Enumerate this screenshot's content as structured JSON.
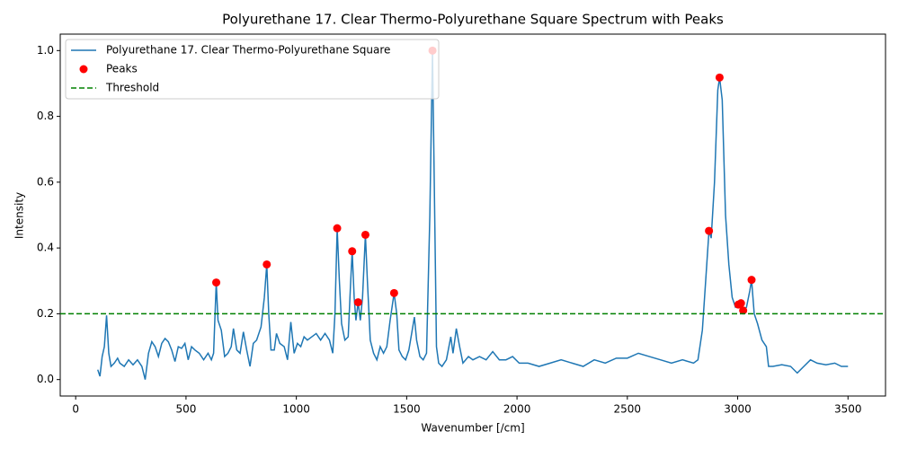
{
  "chart_data": {
    "type": "line",
    "title": "Polyurethane 17. Clear Thermo-Polyurethane Square Spectrum with Peaks",
    "x_label": "Wavenumber [/cm]",
    "y_label": "Intensity",
    "xlim": [
      -70,
      3670
    ],
    "ylim": [
      -0.05,
      1.05
    ],
    "xticks": [
      0,
      500,
      1000,
      1500,
      2000,
      2500,
      3000,
      3500
    ],
    "yticks": [
      {
        "value": 0,
        "label": "0.0"
      },
      0.2,
      0.4,
      0.6,
      0.8,
      {
        "value": 1,
        "label": "1.0"
      }
    ],
    "legend": "upper left",
    "series": [
      {
        "name": "Polyurethane 17. Clear Thermo-Polyurethane Square",
        "kind": "line",
        "color": "#1f77b4",
        "x": [
          100,
          110,
          120,
          130,
          140,
          150,
          160,
          175,
          190,
          200,
          220,
          240,
          260,
          280,
          300,
          315,
          330,
          345,
          360,
          375,
          390,
          405,
          420,
          435,
          450,
          465,
          480,
          495,
          510,
          525,
          540,
          560,
          580,
          600,
          615,
          625,
          637,
          645,
          660,
          675,
          690,
          705,
          715,
          730,
          745,
          760,
          775,
          790,
          805,
          820,
          840,
          855,
          866,
          875,
          885,
          900,
          910,
          925,
          945,
          960,
          975,
          990,
          1005,
          1020,
          1035,
          1050,
          1070,
          1090,
          1110,
          1130,
          1150,
          1165,
          1175,
          1185,
          1195,
          1205,
          1220,
          1235,
          1245,
          1253,
          1262,
          1270,
          1280,
          1290,
          1300,
          1313,
          1322,
          1335,
          1350,
          1365,
          1380,
          1395,
          1410,
          1425,
          1443,
          1455,
          1465,
          1480,
          1495,
          1510,
          1525,
          1535,
          1545,
          1560,
          1575,
          1590,
          1605,
          1617,
          1625,
          1635,
          1645,
          1660,
          1680,
          1700,
          1710,
          1725,
          1740,
          1755,
          1780,
          1800,
          1830,
          1860,
          1890,
          1920,
          1950,
          1980,
          2010,
          2050,
          2100,
          2150,
          2200,
          2250,
          2300,
          2350,
          2400,
          2450,
          2500,
          2550,
          2600,
          2650,
          2700,
          2750,
          2800,
          2820,
          2840,
          2855,
          2870,
          2880,
          2895,
          2910,
          2918,
          2930,
          2945,
          2960,
          2975,
          2990,
          3003,
          3015,
          3025,
          3040,
          3055,
          3063,
          3075,
          3090,
          3110,
          3130,
          3140,
          3160,
          3200,
          3240,
          3270,
          3300,
          3330,
          3360,
          3400,
          3440,
          3470,
          3500
        ],
        "values": [
          0.03,
          0.01,
          0.07,
          0.1,
          0.195,
          0.08,
          0.04,
          0.05,
          0.065,
          0.05,
          0.04,
          0.06,
          0.045,
          0.06,
          0.04,
          0.0,
          0.08,
          0.115,
          0.1,
          0.07,
          0.11,
          0.125,
          0.115,
          0.09,
          0.055,
          0.1,
          0.095,
          0.11,
          0.06,
          0.1,
          0.09,
          0.08,
          0.06,
          0.08,
          0.06,
          0.08,
          0.295,
          0.18,
          0.15,
          0.07,
          0.08,
          0.1,
          0.155,
          0.09,
          0.08,
          0.145,
          0.09,
          0.04,
          0.11,
          0.12,
          0.16,
          0.25,
          0.35,
          0.2,
          0.09,
          0.09,
          0.14,
          0.11,
          0.1,
          0.06,
          0.175,
          0.08,
          0.11,
          0.1,
          0.13,
          0.12,
          0.13,
          0.14,
          0.12,
          0.14,
          0.12,
          0.08,
          0.2,
          0.46,
          0.3,
          0.17,
          0.12,
          0.13,
          0.28,
          0.39,
          0.25,
          0.18,
          0.235,
          0.18,
          0.25,
          0.44,
          0.3,
          0.12,
          0.08,
          0.06,
          0.1,
          0.08,
          0.1,
          0.18,
          0.263,
          0.2,
          0.09,
          0.07,
          0.06,
          0.09,
          0.15,
          0.19,
          0.12,
          0.07,
          0.06,
          0.08,
          0.5,
          1.0,
          0.6,
          0.1,
          0.05,
          0.04,
          0.06,
          0.13,
          0.08,
          0.155,
          0.1,
          0.05,
          0.07,
          0.06,
          0.07,
          0.06,
          0.085,
          0.06,
          0.06,
          0.07,
          0.05,
          0.05,
          0.04,
          0.05,
          0.06,
          0.05,
          0.04,
          0.06,
          0.05,
          0.065,
          0.065,
          0.08,
          0.07,
          0.06,
          0.05,
          0.06,
          0.05,
          0.06,
          0.15,
          0.3,
          0.452,
          0.43,
          0.6,
          0.88,
          0.918,
          0.85,
          0.5,
          0.35,
          0.25,
          0.22,
          0.228,
          0.232,
          0.21,
          0.22,
          0.27,
          0.303,
          0.2,
          0.17,
          0.12,
          0.1,
          0.04,
          0.04,
          0.045,
          0.04,
          0.02,
          0.04,
          0.06,
          0.05,
          0.045,
          0.05,
          0.04,
          0.04
        ]
      },
      {
        "name": "Peaks",
        "kind": "scatter",
        "color": "#ff0000",
        "x": [
          637,
          866,
          1185,
          1253,
          1280,
          1313,
          1443,
          1617,
          2870,
          2918,
          3003,
          3015,
          3025,
          3063
        ],
        "values": [
          0.295,
          0.35,
          0.46,
          0.39,
          0.235,
          0.44,
          0.263,
          1.0,
          0.452,
          0.918,
          0.228,
          0.232,
          0.21,
          0.303
        ]
      },
      {
        "name": "Threshold",
        "kind": "hline",
        "color": "#008000",
        "value": 0.2
      }
    ]
  }
}
